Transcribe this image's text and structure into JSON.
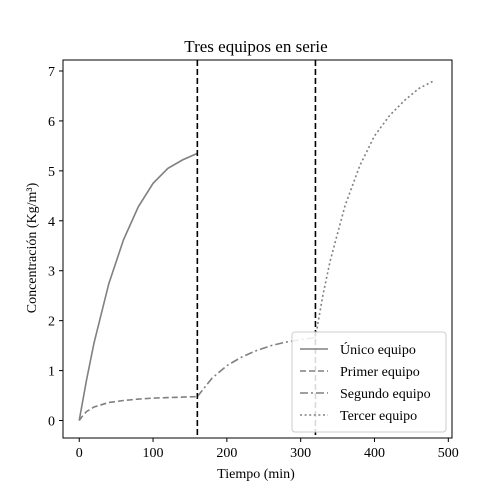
{
  "chart_data": {
    "type": "line",
    "title": "Tres equipos en serie",
    "xlabel": "Tiempo (min)",
    "ylabel": "Concentración (Kg/m³)",
    "xlim": [
      -22,
      505
    ],
    "ylim": [
      -0.35,
      7.22
    ],
    "xticks": [
      0,
      100,
      200,
      300,
      400,
      500
    ],
    "yticks": [
      0,
      1,
      2,
      3,
      4,
      5,
      6,
      7
    ],
    "grid": false,
    "legend_position": "bottom-right",
    "vlines": [
      160,
      320
    ],
    "vline_color": "#000000",
    "series": [
      {
        "name": "Único equipo",
        "style": "solid",
        "color": "#808080",
        "x": [
          0,
          10,
          20,
          40,
          60,
          80,
          100,
          120,
          140,
          160
        ],
        "y": [
          0,
          0.82,
          1.55,
          2.74,
          3.62,
          4.28,
          4.75,
          5.05,
          5.22,
          5.35
        ]
      },
      {
        "name": "Primer equipo",
        "style": "dashed",
        "color": "#808080",
        "x": [
          0,
          5,
          10,
          20,
          40,
          60,
          80,
          100,
          120,
          140,
          160
        ],
        "y": [
          0,
          0.1,
          0.18,
          0.27,
          0.36,
          0.4,
          0.43,
          0.45,
          0.46,
          0.47,
          0.48
        ]
      },
      {
        "name": "Segundo equipo",
        "style": "dashdot",
        "color": "#808080",
        "x": [
          160,
          180,
          200,
          220,
          240,
          260,
          280,
          300,
          320
        ],
        "y": [
          0.48,
          0.85,
          1.1,
          1.27,
          1.4,
          1.5,
          1.57,
          1.62,
          1.66
        ]
      },
      {
        "name": "Tercer equipo",
        "style": "dotted",
        "color": "#808080",
        "x": [
          320,
          330,
          340,
          360,
          380,
          400,
          420,
          440,
          460,
          480
        ],
        "y": [
          1.66,
          2.5,
          3.2,
          4.3,
          5.1,
          5.7,
          6.1,
          6.4,
          6.65,
          6.8
        ]
      }
    ]
  }
}
